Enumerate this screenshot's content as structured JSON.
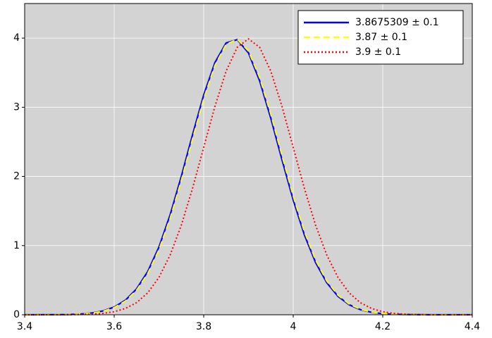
{
  "chart_data": {
    "type": "line",
    "x": [
      3.4,
      3.425,
      3.45,
      3.475,
      3.5,
      3.525,
      3.55,
      3.575,
      3.6,
      3.625,
      3.65,
      3.675,
      3.7,
      3.725,
      3.75,
      3.775,
      3.8,
      3.825,
      3.85,
      3.875,
      3.9,
      3.925,
      3.95,
      3.975,
      4.0,
      4.025,
      4.05,
      4.075,
      4.1,
      4.125,
      4.15,
      4.175,
      4.2,
      4.225,
      4.25,
      4.275,
      4.3,
      4.325,
      4.35,
      4.375,
      4.4
    ],
    "series": [
      {
        "name": "3.8675309 ± 0.1",
        "color": "#0000ff",
        "linestyle": "solid",
        "values": [
          0,
          0,
          0.001,
          0.002,
          0.004,
          0.011,
          0.026,
          0.055,
          0.111,
          0.21,
          0.374,
          0.625,
          0.979,
          1.444,
          2.0,
          2.601,
          3.177,
          3.645,
          3.929,
          3.978,
          3.786,
          3.382,
          2.84,
          2.239,
          1.659,
          1.154,
          0.755,
          0.463,
          0.267,
          0.145,
          0.074,
          0.035,
          0.016,
          0.007,
          0.003,
          0.001,
          0,
          0,
          0,
          0,
          0
        ]
      },
      {
        "name": "3.87 ± 0.1",
        "color": "#ffff00",
        "linestyle": "dashed",
        "values": [
          0,
          0,
          0.001,
          0.002,
          0.004,
          0.01,
          0.024,
          0.051,
          0.104,
          0.198,
          0.355,
          0.596,
          0.94,
          1.394,
          1.942,
          2.541,
          3.123,
          3.605,
          3.91,
          3.984,
          3.814,
          3.429,
          2.897,
          2.299,
          1.714,
          1.2,
          0.79,
          0.488,
          0.283,
          0.155,
          0.079,
          0.038,
          0.017,
          0.007,
          0.003,
          0.001,
          0,
          0,
          0,
          0,
          0
        ]
      },
      {
        "name": "3.9 ± 0.1",
        "color": "#ff0000",
        "linestyle": "dotted",
        "values": [
          0,
          0,
          0,
          0,
          0.001,
          0.004,
          0.009,
          0.02,
          0.044,
          0.091,
          0.175,
          0.317,
          0.54,
          0.863,
          1.295,
          1.826,
          2.42,
          3.011,
          3.521,
          3.867,
          3.989,
          3.867,
          3.521,
          3.011,
          2.42,
          1.826,
          1.295,
          0.863,
          0.54,
          0.317,
          0.175,
          0.091,
          0.044,
          0.02,
          0.009,
          0.004,
          0.001,
          0,
          0,
          0,
          0
        ]
      }
    ],
    "xlim": [
      3.4,
      4.4
    ],
    "xticks": [
      3.4,
      3.6,
      3.8,
      4,
      4.2,
      4.4
    ],
    "ylim": [
      0,
      4.5
    ],
    "yticks": [
      0,
      1,
      2,
      3,
      4
    ],
    "grid": true,
    "legend": "upper right",
    "background": "#d3d3d3"
  }
}
